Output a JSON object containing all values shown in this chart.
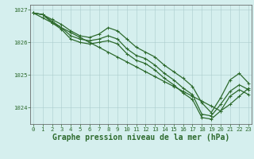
{
  "title": "Graphe pression niveau de la mer (hPa)",
  "hours": [
    0,
    1,
    2,
    3,
    4,
    5,
    6,
    7,
    8,
    9,
    10,
    11,
    12,
    13,
    14,
    15,
    16,
    17,
    18,
    19,
    20,
    21,
    22,
    23
  ],
  "series": [
    {
      "values": [
        1026.9,
        1026.75,
        1026.6,
        1026.45,
        1026.3,
        1026.15,
        1026.0,
        1025.85,
        1025.7,
        1025.55,
        1025.4,
        1025.25,
        1025.1,
        1024.95,
        1024.8,
        1024.65,
        1024.5,
        1024.35,
        1024.2,
        1024.05,
        1023.9,
        1024.1,
        1024.35,
        1024.6
      ],
      "color": "#2d6a2d",
      "linewidth": 0.9,
      "marker": "+",
      "markersize": 2.5
    },
    {
      "values": [
        1026.9,
        1026.85,
        1026.7,
        1026.55,
        1026.35,
        1026.2,
        1026.15,
        1026.25,
        1026.45,
        1026.35,
        1026.1,
        1025.85,
        1025.7,
        1025.55,
        1025.3,
        1025.1,
        1024.9,
        1024.65,
        1024.15,
        1023.85,
        1024.3,
        1024.85,
        1025.05,
        1024.75
      ],
      "color": "#2d6a2d",
      "linewidth": 0.9,
      "marker": "+",
      "markersize": 2.5
    },
    {
      "values": [
        1026.9,
        1026.85,
        1026.65,
        1026.45,
        1026.2,
        1026.1,
        1026.05,
        1026.1,
        1026.2,
        1026.1,
        1025.8,
        1025.6,
        1025.5,
        1025.3,
        1025.05,
        1024.85,
        1024.6,
        1024.4,
        1023.8,
        1023.75,
        1024.1,
        1024.5,
        1024.7,
        1024.55
      ],
      "color": "#2d6a2d",
      "linewidth": 0.9,
      "marker": "+",
      "markersize": 2.5
    },
    {
      "values": [
        1026.9,
        1026.85,
        1026.6,
        1026.4,
        1026.1,
        1026.0,
        1025.95,
        1026.0,
        1026.05,
        1025.95,
        1025.65,
        1025.45,
        1025.35,
        1025.15,
        1024.9,
        1024.7,
        1024.45,
        1024.25,
        1023.7,
        1023.65,
        1023.9,
        1024.35,
        1024.55,
        1024.4
      ],
      "color": "#2d6a2d",
      "linewidth": 0.9,
      "marker": "+",
      "markersize": 2.5
    }
  ],
  "background_color": "#d5efee",
  "grid_color": "#aacccc",
  "axis_color": "#555555",
  "text_color": "#2d6a2d",
  "ylim": [
    1023.5,
    1027.15
  ],
  "yticks": [
    1024,
    1025,
    1026,
    1027
  ],
  "xlim": [
    -0.3,
    23.3
  ],
  "xticks": [
    0,
    1,
    2,
    3,
    4,
    5,
    6,
    7,
    8,
    9,
    10,
    11,
    12,
    13,
    14,
    15,
    16,
    17,
    18,
    19,
    20,
    21,
    22,
    23
  ],
  "title_fontsize": 7.0,
  "tick_fontsize": 5.2
}
